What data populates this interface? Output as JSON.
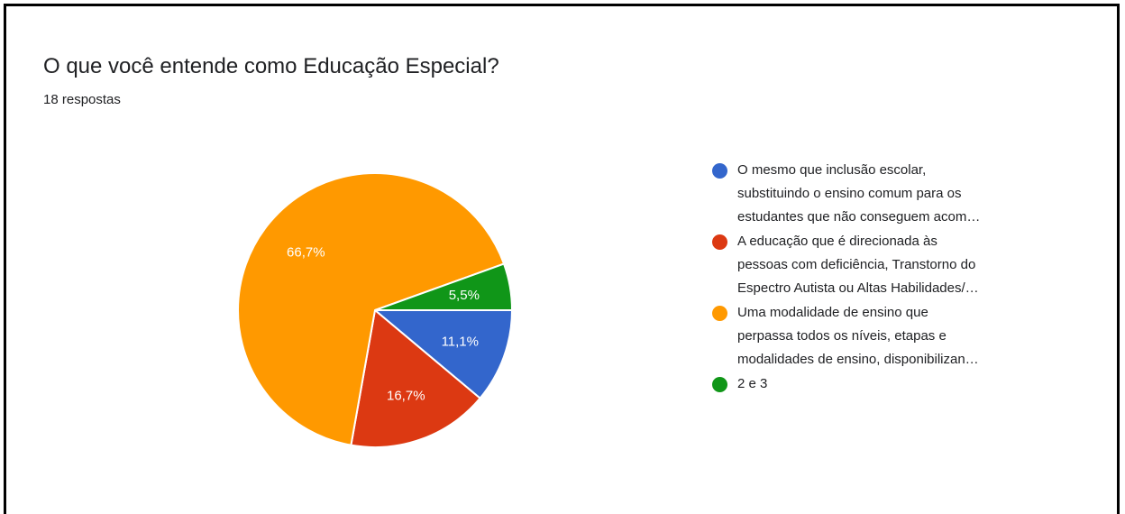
{
  "header": {
    "title": "O que você entende como Educação Especial?",
    "responses": "18 respostas"
  },
  "chart_data": {
    "type": "pie",
    "title": "O que você entende como Educação Especial?",
    "subtitle": "18 respostas",
    "legend_position": "right",
    "slices": [
      {
        "name_lines": [
          "O mesmo que inclusão escolar,",
          "substituindo o ensino comum para os",
          "estudantes que não conseguem acom…"
        ],
        "value": 11.1,
        "label": "11,1%",
        "color": "#3366cc"
      },
      {
        "name_lines": [
          "A educação que é direcionada às",
          "pessoas com deficiência, Transtorno do",
          "Espectro Autista ou Altas Habilidades/…"
        ],
        "value": 16.7,
        "label": "16,7%",
        "color": "#dc3912"
      },
      {
        "name_lines": [
          "Uma modalidade de ensino que",
          "perpassa todos os níveis, etapas e",
          "modalidades de ensino, disponibilizan…"
        ],
        "value": 66.7,
        "label": "66,7%",
        "color": "#ff9900"
      },
      {
        "name_lines": [
          "2 e 3"
        ],
        "value": 5.5,
        "label": "5,5%",
        "color": "#109618"
      }
    ]
  }
}
